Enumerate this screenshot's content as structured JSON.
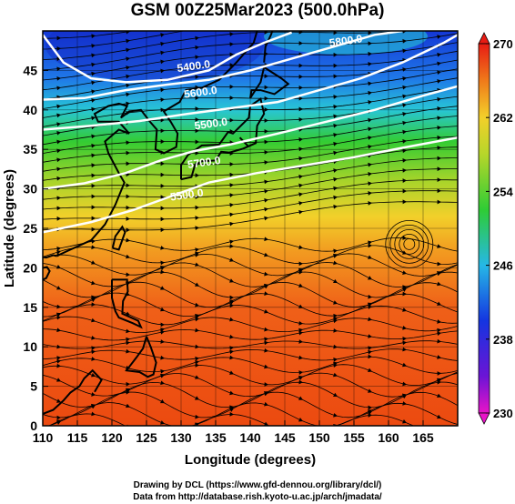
{
  "title": "GSM 00Z25Mar2023 (500.0hPa)",
  "x_axis": {
    "label": "Longitude (degrees)",
    "ticks": [
      110,
      115,
      120,
      125,
      130,
      135,
      140,
      145,
      150,
      155,
      160,
      165
    ],
    "range": [
      110,
      170
    ]
  },
  "y_axis": {
    "label": "Latitude (degrees)",
    "ticks": [
      0,
      5,
      10,
      15,
      20,
      25,
      30,
      35,
      40,
      45
    ],
    "range": [
      0,
      50
    ]
  },
  "colorbar": {
    "ticks": [
      230,
      238,
      246,
      254,
      262,
      270
    ],
    "range": [
      230,
      270
    ]
  },
  "contour_labels": [
    "5400.0",
    "5600.0",
    "5500.0",
    "5700.0",
    "5800.0",
    "5500.0"
  ],
  "credits": [
    "Drawing by DCL (https://www.gfd-dennou.org/library/dcl/)",
    "Data from http://database.rish.kyoto-u.ac.jp/arch/jmadata/"
  ],
  "colors": {
    "cold": "#1a3fd8",
    "cool": "#27c7d3",
    "mid": "#31c83a",
    "warm": "#f0d12b",
    "hot": "#f05a14",
    "contour": "#ffffff"
  }
}
